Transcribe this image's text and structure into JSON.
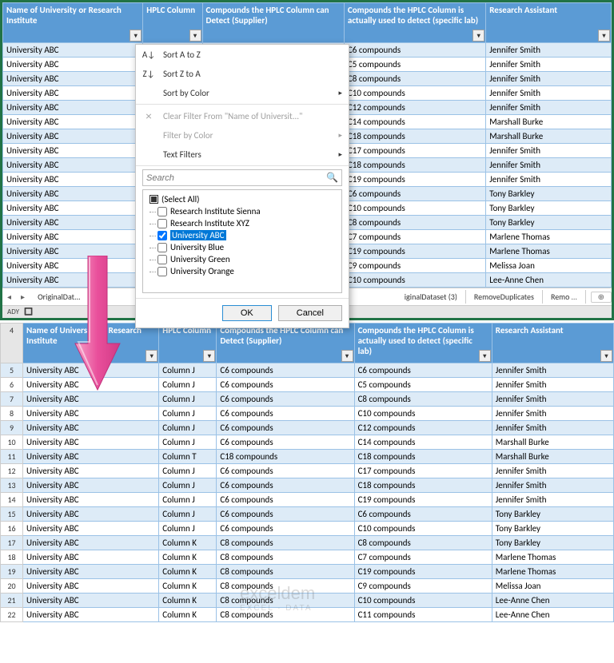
{
  "columns": [
    "Name of University or Research Institute",
    "HPLC Column",
    "Compounds the HPLC Column can Detect (Supplier)",
    "Compounds the HPLC Column is actually used to detect (specific lab)",
    "Research Assistant"
  ],
  "top_rows": [
    {
      "u": "University ABC",
      "d": "C6 compounds",
      "r": "Jennifer Smith"
    },
    {
      "u": "University ABC",
      "d": "C5 compounds",
      "r": "Jennifer Smith"
    },
    {
      "u": "University ABC",
      "d": "C8 compounds",
      "r": "Jennifer Smith"
    },
    {
      "u": "University ABC",
      "d": "C10 compounds",
      "r": "Jennifer Smith"
    },
    {
      "u": "University ABC",
      "d": "C12 compounds",
      "r": "Jennifer Smith"
    },
    {
      "u": "University ABC",
      "d": "C14 compounds",
      "r": "Marshall Burke"
    },
    {
      "u": "University ABC",
      "d": "C18 compounds",
      "r": "Marshall Burke"
    },
    {
      "u": "University ABC",
      "d": "C17 compounds",
      "r": "Jennifer Smith"
    },
    {
      "u": "University ABC",
      "d": "C18 compounds",
      "r": "Jennifer Smith"
    },
    {
      "u": "University ABC",
      "d": "C19 compounds",
      "r": "Jennifer Smith"
    },
    {
      "u": "University ABC",
      "d": "C6 compounds",
      "r": "Tony Barkley"
    },
    {
      "u": "University ABC",
      "d": "C10 compounds",
      "r": "Tony Barkley"
    },
    {
      "u": "University ABC",
      "d": "C8 compounds",
      "r": "Tony Barkley"
    },
    {
      "u": "University ABC",
      "d": "C7 compounds",
      "r": "Marlene Thomas"
    },
    {
      "u": "University ABC",
      "d": "C19 compounds",
      "r": "Marlene Thomas"
    },
    {
      "u": "University ABC",
      "d": "C9 compounds",
      "r": "Melissa Joan"
    },
    {
      "u": "University ABC",
      "d": "C10 compounds",
      "r": "Lee-Anne Chen"
    }
  ],
  "bottom_rows": [
    {
      "n": "5",
      "u": "University ABC",
      "c": "Column J",
      "s": "C6 compounds",
      "d": "C6 compounds",
      "r": "Jennifer Smith"
    },
    {
      "n": "6",
      "u": "University ABC",
      "c": "Column J",
      "s": "C6 compounds",
      "d": "C5 compounds",
      "r": "Jennifer Smith"
    },
    {
      "n": "7",
      "u": "University ABC",
      "c": "Column J",
      "s": "C6 compounds",
      "d": "C8 compounds",
      "r": "Jennifer Smith"
    },
    {
      "n": "8",
      "u": "University ABC",
      "c": "Column J",
      "s": "C6 compounds",
      "d": "C10 compounds",
      "r": "Jennifer Smith"
    },
    {
      "n": "9",
      "u": "University ABC",
      "c": "Column J",
      "s": "C6 compounds",
      "d": "C12 compounds",
      "r": "Jennifer Smith"
    },
    {
      "n": "10",
      "u": "University ABC",
      "c": "Column J",
      "s": "C6 compounds",
      "d": "C14 compounds",
      "r": "Marshall Burke"
    },
    {
      "n": "11",
      "u": "University ABC",
      "c": "Column T",
      "s": "C18 compounds",
      "d": "C18 compounds",
      "r": "Marshall Burke"
    },
    {
      "n": "12",
      "u": "University ABC",
      "c": "Column J",
      "s": "C6 compounds",
      "d": "C17 compounds",
      "r": "Jennifer Smith"
    },
    {
      "n": "13",
      "u": "University ABC",
      "c": "Column J",
      "s": "C6 compounds",
      "d": "C18 compounds",
      "r": "Jennifer Smith"
    },
    {
      "n": "14",
      "u": "University ABC",
      "c": "Column J",
      "s": "C6 compounds",
      "d": "C19 compounds",
      "r": "Jennifer Smith"
    },
    {
      "n": "15",
      "u": "University ABC",
      "c": "Column J",
      "s": "C6 compounds",
      "d": "C6 compounds",
      "r": "Tony Barkley"
    },
    {
      "n": "16",
      "u": "University ABC",
      "c": "Column J",
      "s": "C6 compounds",
      "d": "C10 compounds",
      "r": "Tony Barkley"
    },
    {
      "n": "17",
      "u": "University ABC",
      "c": "Column K",
      "s": "C8 compounds",
      "d": "C8 compounds",
      "r": "Tony Barkley"
    },
    {
      "n": "18",
      "u": "University ABC",
      "c": "Column K",
      "s": "C8 compounds",
      "d": "C7 compounds",
      "r": "Marlene Thomas"
    },
    {
      "n": "19",
      "u": "University ABC",
      "c": "Column K",
      "s": "C8 compounds",
      "d": "C19 compounds",
      "r": "Marlene Thomas"
    },
    {
      "n": "20",
      "u": "University ABC",
      "c": "Column K",
      "s": "C8 compounds",
      "d": "C9 compounds",
      "r": "Melissa Joan"
    },
    {
      "n": "21",
      "u": "University ABC",
      "c": "Column K",
      "s": "C8 compounds",
      "d": "C10 compounds",
      "r": "Lee-Anne Chen"
    },
    {
      "n": "22",
      "u": "University ABC",
      "c": "Column K",
      "s": "C8 compounds",
      "d": "C11 compounds",
      "r": "Lee-Anne Chen"
    }
  ],
  "filter_menu": {
    "sort_az": "Sort A to Z",
    "sort_za": "Sort Z to A",
    "sort_color": "Sort by Color",
    "clear": "Clear Filter From \"Name of Universit...\"",
    "filter_color": "Filter by Color",
    "text_filters": "Text Filters",
    "search_placeholder": "Search",
    "items": [
      {
        "label": "(Select All)",
        "checked": "tri"
      },
      {
        "label": "Research Institute Sienna",
        "checked": false
      },
      {
        "label": "Research Institute XYZ",
        "checked": false
      },
      {
        "label": "University ABC",
        "checked": true,
        "selected": true
      },
      {
        "label": "University Blue",
        "checked": false
      },
      {
        "label": "University Green",
        "checked": false
      },
      {
        "label": "University Orange",
        "checked": false
      }
    ],
    "ok": "OK",
    "cancel": "Cancel"
  },
  "tabs": {
    "t1": "OriginalDat...",
    "t2": "iginalDataset (3)",
    "t3": "RemoveDuplicates",
    "t4": "Remo"
  },
  "status": {
    "ready": "ADY",
    "rec": "🔲"
  },
  "header_row_num": "4",
  "arrow_color": "#e94f9b",
  "watermark": {
    "line1": "exceldem",
    "line2": "EXCEL · DATA"
  }
}
